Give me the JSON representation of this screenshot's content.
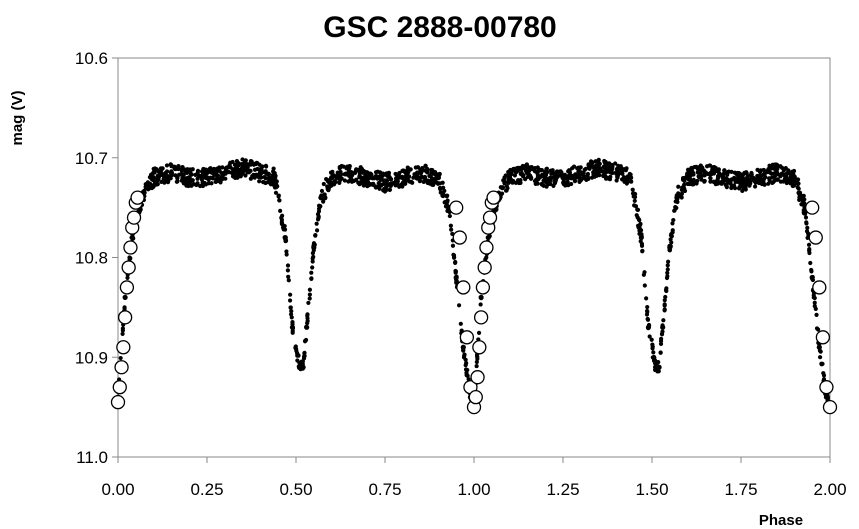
{
  "chart_data": {
    "type": "scatter",
    "title": "GSC 2888-00780",
    "xlabel": "Phase",
    "ylabel": "mag (V)",
    "xlim": [
      0.0,
      2.0
    ],
    "ylim": [
      11.0,
      10.6
    ],
    "y_inverted": true,
    "grid": false,
    "legend": "none",
    "x_ticks": [
      "0.00",
      "0.25",
      "0.50",
      "0.75",
      "1.00",
      "1.25",
      "1.50",
      "1.75",
      "2.00"
    ],
    "y_ticks": [
      "10.6",
      "10.7",
      "10.8",
      "10.9",
      "11.0"
    ],
    "series": [
      {
        "marker": "filled-circle",
        "color": "#000000",
        "x": [
          0.0,
          0.02,
          0.04,
          0.06,
          0.08,
          0.1,
          0.15,
          0.2,
          0.25,
          0.3,
          0.35,
          0.4,
          0.44,
          0.47,
          0.49,
          0.51,
          0.52,
          0.53,
          0.55,
          0.57,
          0.6,
          0.65,
          0.7,
          0.75,
          0.8,
          0.85,
          0.9,
          0.93,
          0.95,
          0.97,
          0.99,
          1.0,
          1.02,
          1.04,
          1.06,
          1.08,
          1.1,
          1.15,
          1.2,
          1.25,
          1.3,
          1.35,
          1.4,
          1.44,
          1.47,
          1.49,
          1.51,
          1.52,
          1.53,
          1.55,
          1.57,
          1.6,
          1.65,
          1.7,
          1.75,
          1.8,
          1.85,
          1.9,
          1.93,
          1.95,
          1.97,
          1.99,
          2.0
        ],
        "y": [
          10.94,
          10.84,
          10.78,
          10.75,
          10.73,
          10.72,
          10.715,
          10.72,
          10.72,
          10.715,
          10.71,
          10.715,
          10.72,
          10.78,
          10.87,
          10.91,
          10.91,
          10.87,
          10.79,
          10.74,
          10.72,
          10.715,
          10.72,
          10.725,
          10.72,
          10.715,
          10.72,
          10.75,
          10.82,
          10.89,
          10.94,
          10.95,
          10.84,
          10.78,
          10.75,
          10.73,
          10.72,
          10.715,
          10.72,
          10.72,
          10.715,
          10.71,
          10.715,
          10.72,
          10.78,
          10.87,
          10.91,
          10.91,
          10.87,
          10.79,
          10.74,
          10.72,
          10.715,
          10.72,
          10.725,
          10.72,
          10.715,
          10.72,
          10.75,
          10.82,
          10.89,
          10.94,
          10.95
        ]
      },
      {
        "marker": "open-circle",
        "color": "#000000",
        "x": [
          0.0,
          0.005,
          0.01,
          0.015,
          0.02,
          0.025,
          0.03,
          0.035,
          0.04,
          0.045,
          0.05,
          0.055,
          0.95,
          0.96,
          0.97,
          0.98,
          0.99,
          1.0,
          1.005,
          1.01,
          1.015,
          1.02,
          1.025,
          1.03,
          1.035,
          1.04,
          1.045,
          1.05,
          1.055,
          1.95,
          1.96,
          1.97,
          1.98,
          1.99,
          2.0
        ],
        "y": [
          10.945,
          10.93,
          10.91,
          10.89,
          10.86,
          10.83,
          10.81,
          10.79,
          10.77,
          10.76,
          10.745,
          10.74,
          10.75,
          10.78,
          10.83,
          10.88,
          10.93,
          10.95,
          10.94,
          10.92,
          10.89,
          10.86,
          10.83,
          10.81,
          10.79,
          10.77,
          10.76,
          10.745,
          10.74,
          10.75,
          10.78,
          10.83,
          10.88,
          10.93,
          10.95
        ]
      }
    ]
  }
}
